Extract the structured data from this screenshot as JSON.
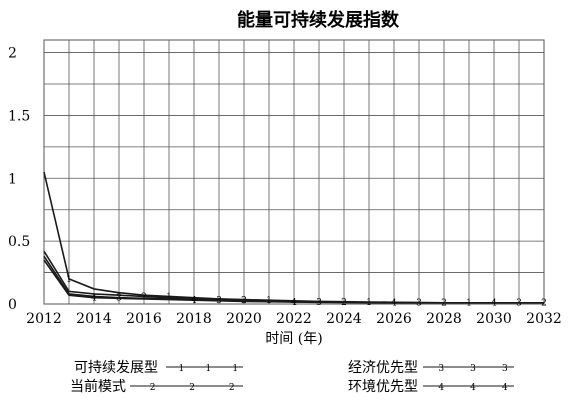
{
  "chart_data": {
    "type": "line",
    "title": "能量可持续发展指数",
    "xlabel": "时间 (年)",
    "ylabel": "",
    "x": [
      2012,
      2013,
      2014,
      2015,
      2016,
      2017,
      2018,
      2019,
      2020,
      2021,
      2022,
      2023,
      2024,
      2025,
      2026,
      2027,
      2028,
      2029,
      2030,
      2031,
      2032
    ],
    "xlim": [
      2012,
      2032
    ],
    "ylim": [
      0,
      2.1
    ],
    "x_ticks": [
      "2012",
      "2014",
      "2016",
      "2018",
      "2020",
      "2022",
      "2024",
      "2026",
      "2028",
      "2030",
      "2032"
    ],
    "y_ticks": [
      {
        "value": 0,
        "label": "0"
      },
      {
        "value": 0.5,
        "label": "0.5"
      },
      {
        "value": 1,
        "label": "1"
      },
      {
        "value": 1.5,
        "label": "1.5"
      },
      {
        "value": 2,
        "label": "2"
      }
    ],
    "grid": true,
    "legend_position": "bottom",
    "series": [
      {
        "name": "可持续发展型",
        "marker": "1",
        "values": [
          1.05,
          0.2,
          0.12,
          0.09,
          0.07,
          0.06,
          0.05,
          0.04,
          0.035,
          0.03,
          0.025,
          0.02,
          0.018,
          0.016,
          0.014,
          0.012,
          0.01,
          0.01,
          0.01,
          0.01,
          0.01
        ]
      },
      {
        "name": "当前模式",
        "marker": "2",
        "values": [
          0.42,
          0.1,
          0.08,
          0.07,
          0.06,
          0.05,
          0.045,
          0.04,
          0.03,
          0.025,
          0.02,
          0.018,
          0.015,
          0.013,
          0.012,
          0.011,
          0.01,
          0.01,
          0.01,
          0.01,
          0.01
        ]
      },
      {
        "name": "经济优先型",
        "marker": "3",
        "values": [
          0.38,
          0.08,
          0.06,
          0.05,
          0.045,
          0.04,
          0.035,
          0.03,
          0.025,
          0.02,
          0.018,
          0.015,
          0.013,
          0.012,
          0.011,
          0.01,
          0.01,
          0.01,
          0.01,
          0.01,
          0.01
        ]
      },
      {
        "name": "环境优先型",
        "marker": "4",
        "values": [
          0.35,
          0.07,
          0.05,
          0.045,
          0.04,
          0.035,
          0.03,
          0.025,
          0.02,
          0.018,
          0.015,
          0.013,
          0.012,
          0.011,
          0.01,
          0.01,
          0.01,
          0.01,
          0.01,
          0.01,
          0.01
        ]
      }
    ]
  },
  "colors": {
    "line": "#1a1a1a",
    "grid": "#555555",
    "background": "#ffffff"
  }
}
